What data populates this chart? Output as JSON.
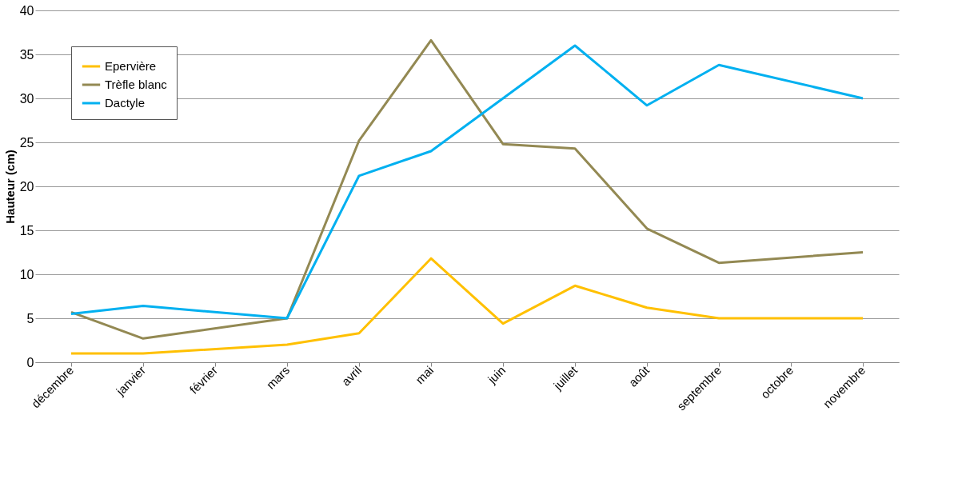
{
  "chart_data": {
    "type": "line",
    "ylabel": "Hauteur (cm)",
    "categories": [
      "décembre",
      "janvier",
      "février",
      "mars",
      "avril",
      "mai",
      "juin",
      "juillet",
      "août",
      "septembre",
      "octobre",
      "novembre"
    ],
    "series": [
      {
        "name": "Epervière",
        "color": "#ffc000",
        "values": [
          1.0,
          1.0,
          null,
          2.0,
          3.3,
          11.8,
          4.4,
          8.7,
          6.2,
          5.0,
          null,
          5.0
        ]
      },
      {
        "name": "Trèfle blanc",
        "color": "#938953",
        "values": [
          5.7,
          2.7,
          null,
          5.0,
          25.2,
          36.6,
          24.8,
          24.3,
          15.2,
          11.3,
          null,
          12.5
        ]
      },
      {
        "name": "Dactyle",
        "color": "#00b0f0",
        "values": [
          5.5,
          6.4,
          null,
          5.0,
          21.2,
          24.0,
          30.0,
          36.0,
          29.2,
          33.8,
          null,
          30.0
        ]
      }
    ],
    "ylim": [
      0,
      40
    ],
    "yticks": [
      0,
      5,
      10,
      15,
      20,
      25,
      30,
      35,
      40
    ],
    "grid": "y",
    "legend": "top left",
    "marker": "none",
    "line_style": "solid"
  }
}
